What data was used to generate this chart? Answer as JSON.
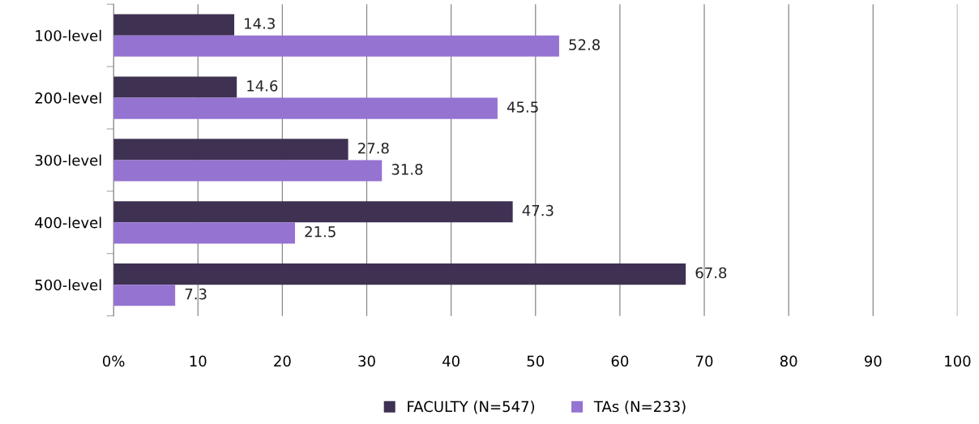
{
  "chart_data": {
    "type": "bar",
    "orientation": "horizontal",
    "categories": [
      "100-level",
      "200-level",
      "300-level",
      "400-level",
      "500-level"
    ],
    "series": [
      {
        "name": "FACULTY (N=547)",
        "color": "#3f3152",
        "values": [
          14.3,
          14.6,
          27.8,
          47.3,
          67.8
        ]
      },
      {
        "name": "TAs (N=233)",
        "color": "#9473d1",
        "values": [
          52.8,
          45.5,
          31.8,
          21.5,
          7.3
        ]
      }
    ],
    "xlim": [
      0,
      100
    ],
    "xticks": [
      {
        "value": 0,
        "label": "0%"
      },
      10,
      20,
      30,
      40,
      50,
      60,
      70,
      80,
      90,
      100
    ],
    "grid": "x",
    "legend": "bottom",
    "data_labels": true
  }
}
